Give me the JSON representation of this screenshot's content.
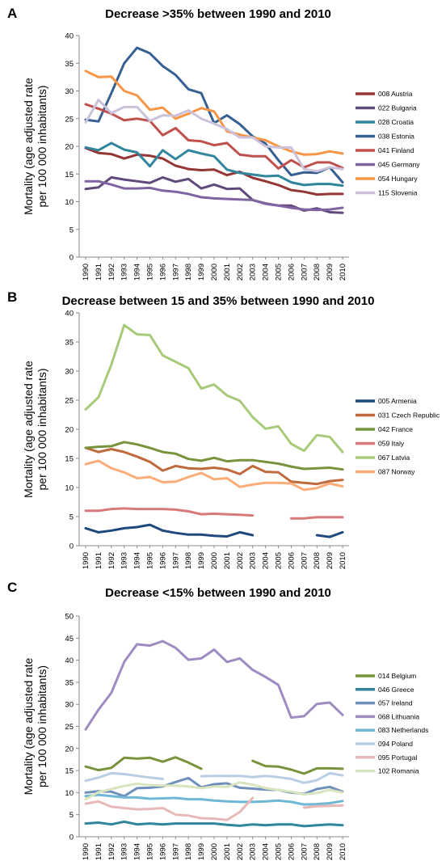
{
  "chart_data": [
    {
      "type": "line",
      "letter": "A",
      "title": "Decrease >35% between 1990 and 2010",
      "ylabel": "Mortality (age adjusted rate per 100 000 inhabitants)",
      "ylim": [
        0,
        40
      ],
      "yticks": [
        0,
        5,
        10,
        15,
        20,
        25,
        30,
        35,
        40
      ],
      "grid": false,
      "legend": "right",
      "x": [
        1990,
        1991,
        1992,
        1993,
        1994,
        1995,
        1996,
        1997,
        1998,
        1999,
        2000,
        2001,
        2002,
        2003,
        2004,
        2005,
        2006,
        2007,
        2008,
        2009,
        2010
      ],
      "series": [
        {
          "name": "008 Austria",
          "color": "#943634",
          "values": [
            19.7,
            18.8,
            18.6,
            17.8,
            18.5,
            18.3,
            17.8,
            16.5,
            15.9,
            15.7,
            15.8,
            14.8,
            15.4,
            14.3,
            13.7,
            13.0,
            12.1,
            11.8,
            11.3,
            11.4,
            11.4
          ]
        },
        {
          "name": "022 Bulgaria",
          "color": "#604a7b",
          "values": [
            12.3,
            12.6,
            14.4,
            14.0,
            13.7,
            13.4,
            14.4,
            13.6,
            14.1,
            12.4,
            13.1,
            12.3,
            12.4,
            10.3,
            9.7,
            9.3,
            9.3,
            8.4,
            8.8,
            8.1,
            8.0
          ]
        },
        {
          "name": "028 Croatia",
          "color": "#31859c",
          "values": [
            19.8,
            19.3,
            20.6,
            19.4,
            18.9,
            16.4,
            19.3,
            17.7,
            19.3,
            18.7,
            18.2,
            15.8,
            15.2,
            14.9,
            14.6,
            14.7,
            13.5,
            13.0,
            13.2,
            13.2,
            12.9
          ]
        },
        {
          "name": "038 Estonia",
          "color": "#376092",
          "values": [
            24.8,
            24.5,
            29.6,
            35.0,
            37.8,
            36.8,
            34.5,
            32.9,
            30.3,
            29.6,
            24.2,
            25.6,
            24.0,
            21.8,
            20.5,
            17.5,
            14.8,
            15.3,
            15.2,
            16.2,
            13.5
          ]
        },
        {
          "name": "041 Finland",
          "color": "#c0504d",
          "values": [
            27.6,
            26.8,
            25.9,
            24.7,
            25.0,
            24.6,
            22.0,
            23.3,
            21.1,
            20.9,
            20.2,
            20.6,
            18.5,
            18.2,
            18.2,
            16.0,
            17.5,
            16.2,
            17.1,
            17.1,
            16.1
          ]
        },
        {
          "name": "045 Germany",
          "color": "#8064a2",
          "values": [
            13.7,
            13.7,
            13.1,
            12.4,
            12.4,
            12.5,
            12.0,
            11.8,
            11.4,
            10.8,
            10.6,
            10.5,
            10.4,
            10.3,
            9.6,
            9.3,
            8.9,
            8.6,
            8.5,
            8.6,
            8.9
          ]
        },
        {
          "name": "054 Hungary",
          "color": "#f79646",
          "values": [
            33.6,
            32.5,
            32.6,
            30.0,
            29.2,
            26.6,
            27.0,
            25.0,
            25.9,
            26.9,
            26.3,
            22.7,
            22.1,
            21.6,
            21.1,
            20.0,
            19.1,
            18.5,
            18.6,
            19.1,
            18.7
          ]
        },
        {
          "name": "115 Slovenia",
          "color": "#ccc1da",
          "values": [
            24.3,
            28.4,
            26.0,
            27.1,
            27.1,
            24.6,
            25.6,
            25.5,
            26.5,
            25.0,
            24.1,
            23.1,
            21.6,
            21.6,
            20.0,
            19.8,
            19.8,
            15.9,
            15.5,
            16.2,
            15.9
          ]
        }
      ]
    },
    {
      "type": "line",
      "letter": "B",
      "title": "Decrease between 15 and 35% between 1990 and 2010",
      "ylabel": "Mortality (age adjusted rate per 100 000 inhabitants)",
      "ylim": [
        0,
        40
      ],
      "yticks": [
        0,
        5,
        10,
        15,
        20,
        25,
        30,
        35,
        40
      ],
      "grid": false,
      "legend": "right",
      "x": [
        1990,
        1991,
        1992,
        1993,
        1994,
        1995,
        1996,
        1997,
        1998,
        1999,
        2000,
        2001,
        2002,
        2003,
        2004,
        2005,
        2006,
        2007,
        2008,
        2009,
        2010
      ],
      "series": [
        {
          "name": "005 Armenia",
          "color": "#1f497d",
          "values": [
            3.0,
            2.3,
            2.6,
            3.0,
            3.2,
            3.6,
            2.6,
            2.2,
            1.9,
            1.9,
            1.7,
            1.6,
            2.3,
            1.8,
            null,
            null,
            null,
            null,
            1.8,
            1.5,
            2.3
          ]
        },
        {
          "name": "031 Czech Republic",
          "color": "#c0693c",
          "values": [
            16.8,
            16.1,
            16.6,
            16.1,
            15.3,
            14.4,
            12.9,
            13.7,
            13.3,
            13.2,
            13.4,
            13.1,
            12.3,
            13.7,
            12.7,
            12.6,
            11.0,
            10.8,
            10.6,
            11.1,
            11.3
          ]
        },
        {
          "name": "042 France",
          "color": "#77933c",
          "values": [
            16.8,
            17.0,
            17.1,
            17.8,
            17.4,
            16.8,
            16.1,
            15.8,
            14.9,
            14.6,
            15.1,
            14.5,
            14.7,
            14.7,
            14.4,
            14.1,
            13.6,
            13.2,
            13.3,
            13.4,
            13.1
          ]
        },
        {
          "name": "059 Italy",
          "color": "#d9797a",
          "values": [
            6.0,
            6.0,
            6.3,
            6.4,
            6.3,
            6.3,
            6.3,
            6.2,
            5.9,
            5.4,
            5.5,
            5.4,
            5.3,
            5.2,
            null,
            null,
            4.7,
            4.7,
            4.9,
            4.9,
            4.9
          ]
        },
        {
          "name": "067 Latvia",
          "color": "#a9c97b",
          "values": [
            23.4,
            25.5,
            31.1,
            37.9,
            36.3,
            36.2,
            32.7,
            31.6,
            30.5,
            27.0,
            27.7,
            25.8,
            24.9,
            22.1,
            20.1,
            20.5,
            17.5,
            16.3,
            19.0,
            18.7,
            16.1
          ]
        },
        {
          "name": "087 Norway",
          "color": "#fbac79",
          "values": [
            14.0,
            14.6,
            13.3,
            12.6,
            11.6,
            11.8,
            10.9,
            11.0,
            11.8,
            12.5,
            11.4,
            11.6,
            10.1,
            10.5,
            10.8,
            10.8,
            10.7,
            9.6,
            9.9,
            10.7,
            10.2
          ]
        }
      ]
    },
    {
      "type": "line",
      "letter": "C",
      "title": "Decrease <15% between 1990 and 2010",
      "ylabel": "Mortality (age adjusted rate per 100 000 inhabitants)",
      "ylim": [
        0,
        50
      ],
      "yticks": [
        0,
        5,
        10,
        15,
        20,
        25,
        30,
        35,
        40,
        45,
        50
      ],
      "grid": false,
      "legend": "right",
      "x": [
        1990,
        1991,
        1992,
        1993,
        1994,
        1995,
        1996,
        1997,
        1998,
        1999,
        2000,
        2001,
        2002,
        2003,
        2004,
        2005,
        2006,
        2007,
        2008,
        2009,
        2010
      ],
      "series": [
        {
          "name": "014 Belgium",
          "color": "#77933c",
          "values": [
            15.9,
            15.1,
            15.6,
            17.9,
            17.7,
            17.9,
            17.0,
            18.0,
            16.8,
            15.4,
            null,
            null,
            null,
            17.2,
            16.0,
            15.9,
            15.2,
            14.3,
            15.5,
            15.5,
            15.4
          ]
        },
        {
          "name": "046 Greece",
          "color": "#31859c",
          "values": [
            3.0,
            3.2,
            2.8,
            3.4,
            2.8,
            3.0,
            2.8,
            3.0,
            3.0,
            3.0,
            3.0,
            2.7,
            2.5,
            2.8,
            2.6,
            2.8,
            2.8,
            2.4,
            2.6,
            2.8,
            2.6
          ]
        },
        {
          "name": "057 Ireland",
          "color": "#6f8fbd",
          "values": [
            10.0,
            10.3,
            10.2,
            9.2,
            11.0,
            11.1,
            11.4,
            12.4,
            13.3,
            11.2,
            11.9,
            12.1,
            11.1,
            10.9,
            10.7,
            10.6,
            10.0,
            9.7,
            10.8,
            11.3,
            10.2
          ]
        },
        {
          "name": "068 Lithuania",
          "color": "#9e8cc1",
          "values": [
            24.3,
            28.8,
            32.6,
            39.6,
            43.6,
            43.3,
            44.3,
            42.8,
            40.1,
            40.4,
            42.4,
            39.6,
            40.4,
            37.8,
            36.2,
            34.4,
            27.0,
            27.3,
            30.1,
            30.4,
            27.6
          ]
        },
        {
          "name": "083 Netherlands",
          "color": "#6fb7d4",
          "values": [
            9.2,
            9.5,
            9.2,
            8.9,
            8.9,
            8.6,
            8.7,
            8.8,
            8.5,
            8.5,
            8.2,
            8.0,
            7.9,
            7.9,
            8.0,
            8.2,
            7.9,
            7.3,
            7.4,
            7.6,
            8.1
          ]
        },
        {
          "name": "094 Poland",
          "color": "#b9cde5",
          "values": [
            12.7,
            13.4,
            14.4,
            14.2,
            13.8,
            13.4,
            13.1,
            null,
            null,
            13.7,
            13.8,
            13.8,
            13.8,
            13.5,
            13.8,
            13.5,
            13.1,
            12.2,
            12.8,
            14.4,
            13.9
          ]
        },
        {
          "name": "095 Portugal",
          "color": "#e6b9b8",
          "values": [
            7.5,
            8.0,
            6.8,
            6.5,
            6.2,
            6.3,
            6.5,
            5.0,
            4.8,
            4.2,
            4.1,
            3.8,
            5.6,
            8.8,
            null,
            null,
            null,
            6.6,
            6.9,
            7.0,
            7.1
          ]
        },
        {
          "name": "102 Romania",
          "color": "#d7e4bd",
          "values": [
            8.5,
            10.1,
            10.8,
            11.5,
            12.0,
            11.7,
            11.6,
            11.6,
            11.4,
            11.0,
            11.4,
            11.3,
            12.3,
            11.8,
            11.0,
            10.6,
            10.2,
            9.6,
            9.9,
            10.6,
            10.0
          ]
        }
      ]
    }
  ]
}
